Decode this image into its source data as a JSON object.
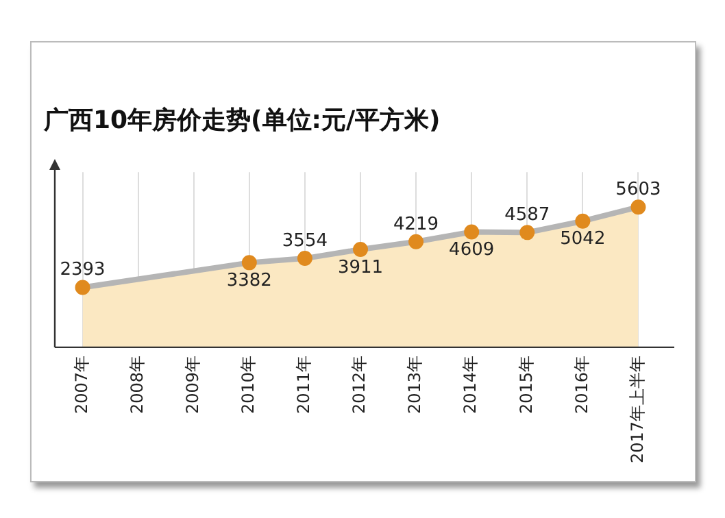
{
  "chart_data": {
    "type": "area",
    "title": "广西10年房价走势(单位:元/平方米)",
    "categories": [
      "2007年",
      "2008年",
      "2009年",
      "2010年",
      "2011年",
      "2012年",
      "2013年",
      "2014年",
      "2015年",
      "2016年",
      "2017年上半年"
    ],
    "values": [
      2393,
      null,
      null,
      3382,
      3554,
      3911,
      4219,
      4609,
      4587,
      5042,
      5603
    ],
    "color": "#fbe8c2",
    "marker": "circle",
    "data_labels": true,
    "grid": "x",
    "legend": false
  }
}
